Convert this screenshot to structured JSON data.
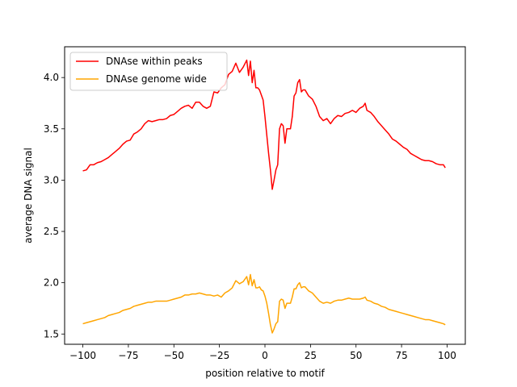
{
  "chart_data": {
    "type": "line",
    "title": "",
    "xlabel": "position relative to motif",
    "ylabel": "average DNA signal",
    "xlim": [
      -110,
      110
    ],
    "ylim": [
      1.4,
      4.3
    ],
    "xticks": [
      -100,
      -75,
      -50,
      -25,
      0,
      25,
      50,
      75,
      100
    ],
    "xtick_labels": [
      "−100",
      "−75",
      "−50",
      "−25",
      "0",
      "25",
      "50",
      "75",
      "100"
    ],
    "yticks": [
      1.5,
      2.0,
      2.5,
      3.0,
      3.5,
      4.0
    ],
    "ytick_labels": [
      "1.5",
      "2.0",
      "2.5",
      "3.0",
      "3.5",
      "4.0"
    ],
    "grid": false,
    "legend_position": "top-left",
    "series": [
      {
        "name": "DNAse within peaks",
        "color": "#ff0000",
        "x": [
          -100,
          -98,
          -96,
          -94,
          -92,
          -90,
          -88,
          -86,
          -84,
          -82,
          -80,
          -78,
          -76,
          -74,
          -72,
          -70,
          -68,
          -66,
          -64,
          -62,
          -60,
          -58,
          -56,
          -54,
          -52,
          -50,
          -48,
          -46,
          -44,
          -42,
          -40,
          -38,
          -36,
          -34,
          -32,
          -30,
          -28,
          -26,
          -24,
          -22,
          -20,
          -18,
          -16,
          -14,
          -12,
          -10,
          -9,
          -8,
          -7,
          -6,
          -5,
          -4,
          -3,
          -2,
          -1,
          0,
          1,
          2,
          3,
          4,
          5,
          6,
          7,
          8,
          9,
          10,
          11,
          12,
          14,
          15,
          16,
          17,
          18,
          19,
          20,
          21,
          22,
          24,
          26,
          28,
          30,
          32,
          34,
          36,
          38,
          40,
          42,
          44,
          46,
          48,
          50,
          52,
          54,
          55,
          56,
          58,
          60,
          62,
          64,
          66,
          68,
          70,
          72,
          74,
          76,
          78,
          80,
          82,
          84,
          86,
          88,
          90,
          92,
          94,
          96,
          98,
          99
        ],
        "values": [
          3.09,
          3.1,
          3.15,
          3.15,
          3.17,
          3.18,
          3.2,
          3.22,
          3.25,
          3.28,
          3.31,
          3.35,
          3.38,
          3.39,
          3.45,
          3.47,
          3.5,
          3.55,
          3.58,
          3.57,
          3.58,
          3.59,
          3.59,
          3.6,
          3.63,
          3.64,
          3.67,
          3.7,
          3.72,
          3.73,
          3.7,
          3.76,
          3.76,
          3.72,
          3.7,
          3.72,
          3.86,
          3.85,
          3.9,
          3.93,
          4.03,
          4.06,
          4.14,
          4.05,
          4.1,
          4.17,
          4.02,
          4.16,
          3.95,
          4.07,
          3.9,
          3.9,
          3.88,
          3.83,
          3.78,
          3.62,
          3.44,
          3.26,
          3.1,
          2.91,
          3.0,
          3.1,
          3.15,
          3.5,
          3.55,
          3.53,
          3.36,
          3.5,
          3.5,
          3.62,
          3.82,
          3.85,
          3.95,
          3.98,
          3.86,
          3.88,
          3.88,
          3.82,
          3.79,
          3.72,
          3.62,
          3.58,
          3.6,
          3.55,
          3.6,
          3.63,
          3.62,
          3.65,
          3.66,
          3.68,
          3.66,
          3.7,
          3.72,
          3.75,
          3.68,
          3.66,
          3.62,
          3.57,
          3.53,
          3.49,
          3.45,
          3.4,
          3.38,
          3.35,
          3.32,
          3.3,
          3.26,
          3.24,
          3.22,
          3.2,
          3.19,
          3.19,
          3.18,
          3.16,
          3.15,
          3.15,
          3.12
        ]
      },
      {
        "name": "DNAse genome wide",
        "color": "#ffa500",
        "x": [
          -100,
          -98,
          -96,
          -94,
          -92,
          -90,
          -88,
          -86,
          -84,
          -82,
          -80,
          -78,
          -76,
          -74,
          -72,
          -70,
          -68,
          -66,
          -64,
          -62,
          -60,
          -58,
          -56,
          -54,
          -52,
          -50,
          -48,
          -46,
          -44,
          -42,
          -40,
          -38,
          -36,
          -34,
          -32,
          -30,
          -28,
          -26,
          -24,
          -22,
          -20,
          -18,
          -16,
          -14,
          -12,
          -10,
          -9,
          -8,
          -7,
          -6,
          -5,
          -4,
          -3,
          -2,
          -1,
          0,
          1,
          2,
          3,
          4,
          5,
          6,
          7,
          8,
          9,
          10,
          11,
          12,
          14,
          15,
          16,
          17,
          18,
          19,
          20,
          21,
          22,
          24,
          26,
          28,
          30,
          32,
          34,
          36,
          38,
          40,
          42,
          44,
          46,
          48,
          50,
          52,
          54,
          55,
          56,
          58,
          60,
          62,
          64,
          66,
          68,
          70,
          72,
          74,
          76,
          78,
          80,
          82,
          84,
          86,
          88,
          90,
          92,
          94,
          96,
          98,
          99
        ],
        "values": [
          1.6,
          1.61,
          1.62,
          1.63,
          1.64,
          1.65,
          1.66,
          1.68,
          1.69,
          1.7,
          1.71,
          1.73,
          1.74,
          1.75,
          1.77,
          1.78,
          1.79,
          1.8,
          1.81,
          1.81,
          1.82,
          1.82,
          1.82,
          1.82,
          1.83,
          1.84,
          1.85,
          1.86,
          1.88,
          1.88,
          1.89,
          1.89,
          1.9,
          1.89,
          1.88,
          1.88,
          1.87,
          1.88,
          1.86,
          1.9,
          1.92,
          1.95,
          2.02,
          1.99,
          2.01,
          2.06,
          1.98,
          2.08,
          1.97,
          2.03,
          1.95,
          1.95,
          1.96,
          1.93,
          1.92,
          1.87,
          1.8,
          1.7,
          1.59,
          1.51,
          1.55,
          1.6,
          1.62,
          1.82,
          1.84,
          1.83,
          1.75,
          1.8,
          1.8,
          1.86,
          1.94,
          1.94,
          1.98,
          2.0,
          1.95,
          1.96,
          1.96,
          1.92,
          1.9,
          1.86,
          1.82,
          1.8,
          1.81,
          1.8,
          1.82,
          1.83,
          1.83,
          1.84,
          1.85,
          1.84,
          1.84,
          1.84,
          1.85,
          1.86,
          1.83,
          1.82,
          1.8,
          1.79,
          1.77,
          1.76,
          1.74,
          1.73,
          1.72,
          1.71,
          1.7,
          1.69,
          1.68,
          1.67,
          1.66,
          1.65,
          1.64,
          1.64,
          1.63,
          1.62,
          1.61,
          1.6,
          1.59
        ]
      }
    ]
  }
}
